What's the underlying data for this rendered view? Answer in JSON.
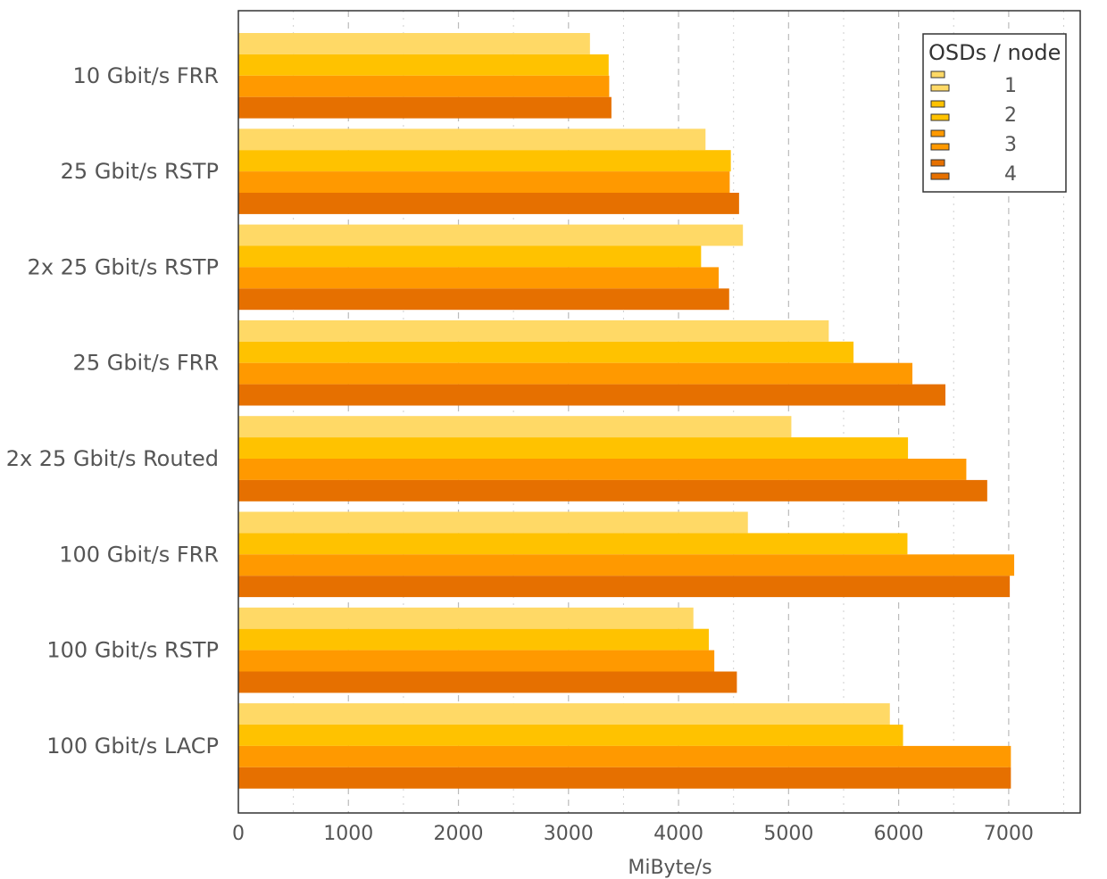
{
  "chart_data": {
    "type": "bar",
    "orientation": "horizontal",
    "title": "",
    "xlabel": "MiByte/s",
    "ylabel": "",
    "xlim": [
      0,
      7650
    ],
    "xticks": [
      0,
      1000,
      2000,
      3000,
      4000,
      5000,
      6000,
      7000
    ],
    "grid": true,
    "legend": {
      "title": "OSDs / node",
      "placement": "top-right"
    },
    "categories": [
      "10 Gbit/s FRR",
      "25 Gbit/s RSTP",
      "2x 25 Gbit/s RSTP",
      "25 Gbit/s FRR",
      "2x 25 Gbit/s Routed",
      "100 Gbit/s FRR",
      "100 Gbit/s RSTP",
      "100 Gbit/s LACP"
    ],
    "series": [
      {
        "name": "1",
        "color": "#FFD966",
        "values": [
          3195,
          4245,
          4585,
          5365,
          5025,
          4630,
          4135,
          5920
        ]
      },
      {
        "name": "2",
        "color": "#FFC200",
        "values": [
          3365,
          4475,
          4205,
          5590,
          6085,
          6080,
          4275,
          6040
        ]
      },
      {
        "name": "3",
        "color": "#FF9900",
        "values": [
          3370,
          4465,
          4365,
          6125,
          6615,
          7050,
          4325,
          7020
        ]
      },
      {
        "name": "4",
        "color": "#E67000",
        "values": [
          3390,
          4550,
          4460,
          6425,
          6805,
          7010,
          4530,
          7020
        ]
      }
    ]
  }
}
